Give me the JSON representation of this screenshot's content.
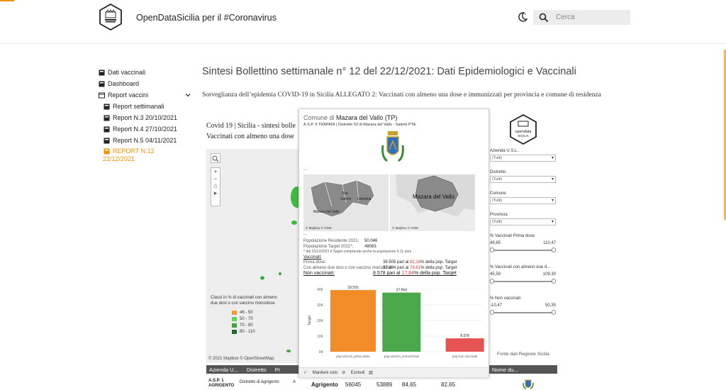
{
  "header": {
    "site_title": "OpenDataSicilia per il #Coronavirus",
    "search_placeholder": "Cerca"
  },
  "sidebar": {
    "items": [
      {
        "label": "Dati vaccinali"
      },
      {
        "label": "Dashboard"
      },
      {
        "label": "Report vaccini"
      }
    ],
    "subitems": [
      {
        "label": "Report settimanali"
      },
      {
        "label": "Report N.3 20/10/2021"
      },
      {
        "label": "Report N.4 27/10/2021"
      },
      {
        "label": "Report N.5 04/11/2021"
      },
      {
        "label": "REPORT N.12\n22/12/2021",
        "line1": "REPORT N.12",
        "line2": "22/12/2021"
      }
    ]
  },
  "main": {
    "title": "Sintesi Bollettino settimanale n° 12 del 22/12/2021: Dati Epidemiologici e Vaccinali",
    "subtitle": "Sorveglianza dell’epidemia COVID-19 in Sicilia ALLEGATO 2: Vaccinati con almeno una dose e immunizzati per provincia e comune di residenza",
    "embed_line1": "Covid 19 | Sicilia - sintesi bolle",
    "embed_line2": "Vaccinati con almeno una dose"
  },
  "map": {
    "legend_title_1": "Classi in % di vaccinati con almeno",
    "legend_title_2": "due dosi o con vaccino monodose",
    "legend": [
      {
        "label": "46 - 50",
        "color": "#f29b30"
      },
      {
        "label": "50 - 70",
        "color": "#5bd65b"
      },
      {
        "label": "70 - 80",
        "color": "#3aa53a"
      },
      {
        "label": "80 - 110",
        "color": "#1f6b2a"
      }
    ],
    "credit": "© 2021 Mapbox © OpenStreetMap"
  },
  "table": {
    "headers": [
      "Azienda U...",
      "Distretto",
      "Pr"
    ],
    "row": {
      "asp": "A.S.P. 1",
      "asp2": "AGRIGENTO",
      "distretto": "Distretto di Agrigento",
      "a": "A",
      "comune": "Agrigento",
      "v1": "56045",
      "v2": "53889",
      "v3": "84,65",
      "v4": "82,65"
    },
    "right_header": "Nome du..."
  },
  "tooltip": {
    "title_prefix": "Comune di",
    "title_name": "Mazara del Vallo (TP)",
    "asp_line": "A.S.P. 9 TRAPANI | Distretto 53 di Mazara del Vallo - Salemi PTA",
    "dots": "...",
    "map1_labels": [
      "Vita",
      "Salemi",
      "Gibellina",
      "Mazara del Vallo"
    ],
    "map2_label": "Mazara del Vallo",
    "map_credit": "© Mapbox © OSM",
    "pop_res_label": "Popolazione Residente 2021:",
    "pop_res_value": "50.046",
    "pop_target_label": "Popolazione Target  2021*:",
    "pop_target_value": "48083",
    "note": "* dal 15/12/2021 il Target comprende anche la popolazione 5-11 anni",
    "vaccinati_label": "Vaccinati:",
    "prima_label": "Prima dose:",
    "prima_value": "39.505 pari al",
    "prima_pct": "82,16",
    "prima_suffix": "% della pop. Target",
    "mono_label": "Con almeno due dosi o con vaccino monodose:",
    "mono_value": "37.894 pari al",
    "mono_pct": "78,81",
    "mono_suffix": "% della pop. Target",
    "non_label": "Non vaccinati:",
    "non_value": "8.578 pari al",
    "non_pct": "17,84",
    "non_suffix": "%  della pop. Target",
    "footer_keep": "Mantieni solo",
    "footer_exclude": "Escludi"
  },
  "chart_data": {
    "type": "bar",
    "categories": [
      "pop-vaccini_prima dose",
      "pop-vaccini_immunizzati",
      "pop-non vaccinati"
    ],
    "values": [
      39505,
      37894,
      8578
    ],
    "value_labels": [
      "39.505",
      "37.894",
      "8.578"
    ],
    "colors": [
      "#f28c28",
      "#4aa84a",
      "#e55353"
    ],
    "ylabel": "Target",
    "yticks": [
      "0K",
      "10K",
      "20K",
      "30K",
      "40K"
    ],
    "ylim": [
      0,
      40000
    ],
    "grid": true
  },
  "filters": {
    "selects": [
      {
        "label": "Azienda U.S.L.",
        "value": "(Tutti)"
      },
      {
        "label": "Distretto",
        "value": "(Tutti)"
      },
      {
        "label": "Comune",
        "value": "(Tutti)"
      },
      {
        "label": "Provincia",
        "value": "(Tutti)"
      }
    ],
    "ranges": [
      {
        "label": "% Vaccinati Prima dose",
        "min": "49,65",
        "max": "110,47"
      },
      {
        "label": "% Vaccinati con almeno due d...",
        "min": "45,59",
        "max": "109,30"
      },
      {
        "label": "% Non vaccinati",
        "min": "-10,47",
        "max": "50,35"
      }
    ],
    "source": "Fonte dati Regione Sicilia",
    "logo_text_1": "opendata",
    "logo_text_2": "SICILIA"
  }
}
